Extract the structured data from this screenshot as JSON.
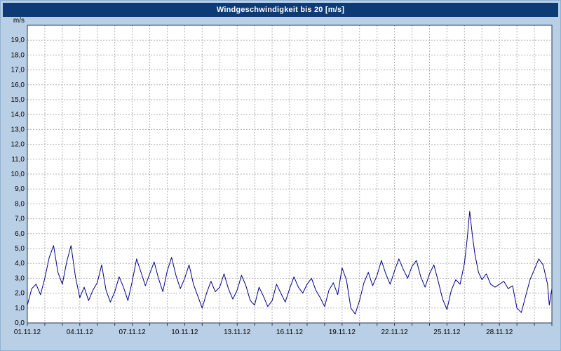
{
  "colors": {
    "panel_bg": "#b9cfe6",
    "titlebar_bg": "#0d3b76",
    "titlebar_text": "#ffffff",
    "plot_bg": "#ffffff",
    "grid": "#b3b3b3",
    "border": "#2b3a55",
    "line": "#00008b",
    "tick_text": "#000000"
  },
  "chart_data": {
    "type": "line",
    "title": "Windgeschwindigkeit bis 20 [m/s]",
    "ylabel": "m/s",
    "ylim": [
      0,
      20
    ],
    "xlim_days": [
      0,
      30
    ],
    "y_grid_step": 1,
    "x_grid_step": 1,
    "grid": true,
    "legend": "none",
    "y_tick_labels": [
      "19,0",
      "18,0",
      "17,0",
      "16,0",
      "15,0",
      "14,0",
      "13,0",
      "12,0",
      "11,0",
      "10,0",
      "9,0",
      "8,0",
      "7,0",
      "6,0",
      "5,0",
      "4,0",
      "3,0",
      "2,0",
      "1,0",
      "0,0"
    ],
    "x_ticks": [
      {
        "label": "01.11.12",
        "day": 0
      },
      {
        "label": "04.11.12",
        "day": 3
      },
      {
        "label": "07.11.12",
        "day": 6
      },
      {
        "label": "10.11.12",
        "day": 9
      },
      {
        "label": "13.11.12",
        "day": 12
      },
      {
        "label": "16.11.12",
        "day": 15
      },
      {
        "label": "19.11.12",
        "day": 18
      },
      {
        "label": "22.11.12",
        "day": 21
      },
      {
        "label": "25.11.12",
        "day": 24
      },
      {
        "label": "28.11.12",
        "day": 27
      }
    ],
    "series": [
      {
        "name": "Windgeschwindigkeit",
        "color": "#00008b",
        "points": [
          [
            0,
            1.2
          ],
          [
            0.25,
            2.3
          ],
          [
            0.5,
            2.6
          ],
          [
            0.75,
            1.9
          ],
          [
            1,
            3.0
          ],
          [
            1.25,
            4.4
          ],
          [
            1.5,
            5.2
          ],
          [
            1.75,
            3.4
          ],
          [
            2,
            2.6
          ],
          [
            2.25,
            4.1
          ],
          [
            2.5,
            5.2
          ],
          [
            2.75,
            3.1
          ],
          [
            3,
            1.7
          ],
          [
            3.25,
            2.4
          ],
          [
            3.5,
            1.5
          ],
          [
            3.75,
            2.2
          ],
          [
            4,
            2.7
          ],
          [
            4.25,
            3.9
          ],
          [
            4.5,
            2.2
          ],
          [
            4.75,
            1.4
          ],
          [
            5,
            2.1
          ],
          [
            5.25,
            3.1
          ],
          [
            5.5,
            2.4
          ],
          [
            5.75,
            1.5
          ],
          [
            6,
            2.8
          ],
          [
            6.25,
            4.3
          ],
          [
            6.5,
            3.4
          ],
          [
            6.75,
            2.5
          ],
          [
            7,
            3.3
          ],
          [
            7.25,
            4.1
          ],
          [
            7.5,
            3.0
          ],
          [
            7.75,
            2.1
          ],
          [
            8,
            3.5
          ],
          [
            8.25,
            4.4
          ],
          [
            8.5,
            3.2
          ],
          [
            8.75,
            2.3
          ],
          [
            9,
            3.0
          ],
          [
            9.25,
            3.9
          ],
          [
            9.5,
            2.6
          ],
          [
            9.75,
            1.8
          ],
          [
            10,
            1.0
          ],
          [
            10.25,
            2.0
          ],
          [
            10.5,
            2.8
          ],
          [
            10.75,
            2.1
          ],
          [
            11,
            2.4
          ],
          [
            11.25,
            3.3
          ],
          [
            11.5,
            2.3
          ],
          [
            11.75,
            1.6
          ],
          [
            12,
            2.2
          ],
          [
            12.25,
            3.2
          ],
          [
            12.5,
            2.5
          ],
          [
            12.75,
            1.5
          ],
          [
            13,
            1.2
          ],
          [
            13.25,
            2.4
          ],
          [
            13.5,
            1.8
          ],
          [
            13.75,
            1.1
          ],
          [
            14,
            1.5
          ],
          [
            14.25,
            2.6
          ],
          [
            14.5,
            2.0
          ],
          [
            14.75,
            1.4
          ],
          [
            15,
            2.3
          ],
          [
            15.25,
            3.1
          ],
          [
            15.5,
            2.4
          ],
          [
            15.75,
            2.0
          ],
          [
            16,
            2.6
          ],
          [
            16.25,
            3.0
          ],
          [
            16.5,
            2.2
          ],
          [
            16.75,
            1.7
          ],
          [
            17,
            1.1
          ],
          [
            17.25,
            2.2
          ],
          [
            17.5,
            2.7
          ],
          [
            17.75,
            1.9
          ],
          [
            18,
            3.7
          ],
          [
            18.25,
            2.9
          ],
          [
            18.5,
            1.0
          ],
          [
            18.75,
            0.6
          ],
          [
            19,
            1.5
          ],
          [
            19.25,
            2.7
          ],
          [
            19.5,
            3.4
          ],
          [
            19.75,
            2.5
          ],
          [
            20,
            3.2
          ],
          [
            20.25,
            4.2
          ],
          [
            20.5,
            3.3
          ],
          [
            20.75,
            2.6
          ],
          [
            21,
            3.5
          ],
          [
            21.25,
            4.3
          ],
          [
            21.5,
            3.6
          ],
          [
            21.75,
            3.0
          ],
          [
            22,
            3.8
          ],
          [
            22.25,
            4.2
          ],
          [
            22.5,
            3.1
          ],
          [
            22.75,
            2.4
          ],
          [
            23,
            3.3
          ],
          [
            23.25,
            3.9
          ],
          [
            23.5,
            2.8
          ],
          [
            23.75,
            1.6
          ],
          [
            24,
            0.9
          ],
          [
            24.25,
            2.2
          ],
          [
            24.5,
            2.9
          ],
          [
            24.75,
            2.6
          ],
          [
            25,
            4.0
          ],
          [
            25.15,
            5.6
          ],
          [
            25.3,
            7.5
          ],
          [
            25.45,
            5.9
          ],
          [
            25.6,
            4.6
          ],
          [
            25.8,
            3.4
          ],
          [
            26,
            2.9
          ],
          [
            26.25,
            3.3
          ],
          [
            26.5,
            2.6
          ],
          [
            26.75,
            2.4
          ],
          [
            27,
            2.6
          ],
          [
            27.25,
            2.8
          ],
          [
            27.5,
            2.3
          ],
          [
            27.75,
            2.5
          ],
          [
            28,
            1.0
          ],
          [
            28.25,
            0.7
          ],
          [
            28.5,
            1.8
          ],
          [
            28.75,
            2.9
          ],
          [
            29,
            3.6
          ],
          [
            29.25,
            4.3
          ],
          [
            29.5,
            3.9
          ],
          [
            29.75,
            2.6
          ],
          [
            29.85,
            1.2
          ],
          [
            30,
            2.3
          ]
        ]
      }
    ]
  }
}
